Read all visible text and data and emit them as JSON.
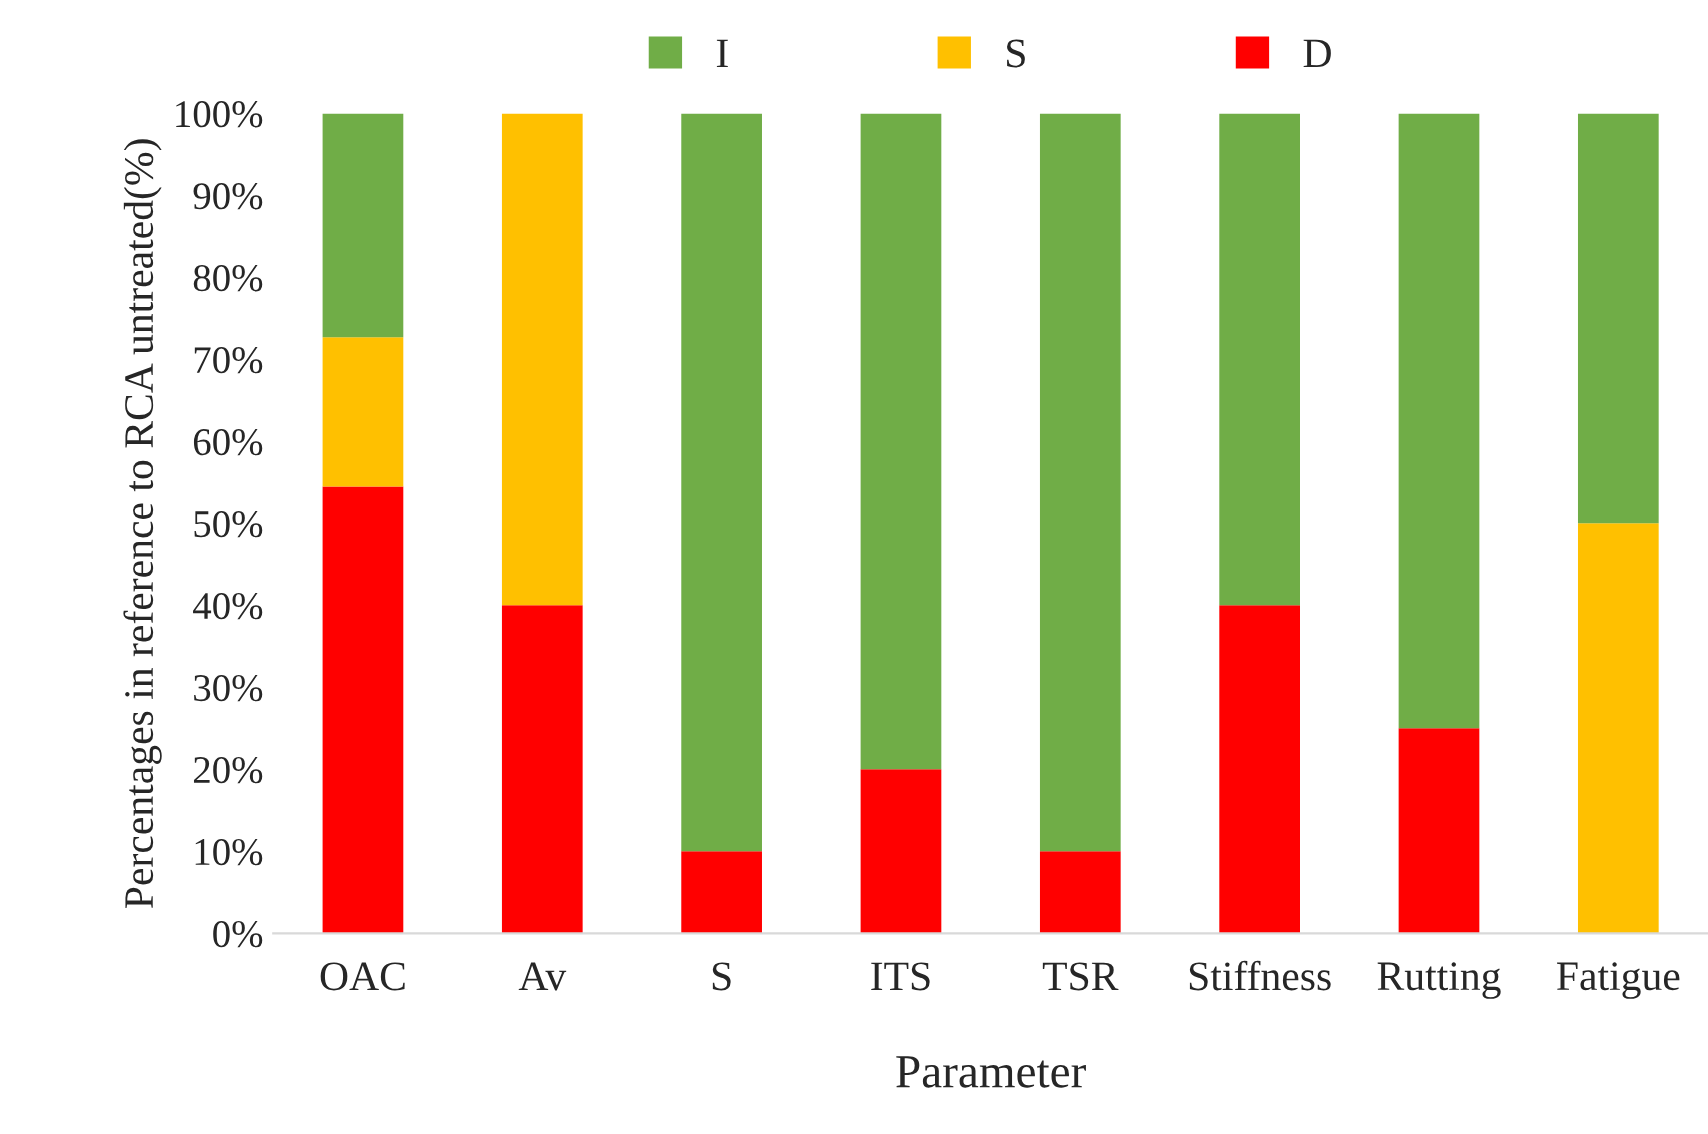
{
  "chart_data": {
    "type": "bar",
    "stacked": true,
    "xlabel": "Parameter",
    "ylabel": "Percentages in reference to RCA untreated(%)",
    "categories": [
      "OAC",
      "Av",
      "S",
      "ITS",
      "TSR",
      "Stiffness",
      "Rutting",
      "Fatigue"
    ],
    "series": [
      {
        "name": "D",
        "color": "#ff0000",
        "values": [
          54.5,
          40,
          10,
          20,
          10,
          40,
          25,
          0
        ]
      },
      {
        "name": "S",
        "color": "#ffc000",
        "values": [
          18.2,
          60,
          0,
          0,
          0,
          0,
          0,
          50
        ]
      },
      {
        "name": "I",
        "color": "#70ad47",
        "values": [
          27.3,
          0,
          90,
          80,
          90,
          60,
          75,
          50
        ]
      }
    ],
    "ylim": [
      0,
      100
    ],
    "yticks": [
      {
        "value": 0,
        "label": "0%"
      },
      {
        "value": 10,
        "label": "10%"
      },
      {
        "value": 20,
        "label": "20%"
      },
      {
        "value": 30,
        "label": "30%"
      },
      {
        "value": 40,
        "label": "40%"
      },
      {
        "value": 50,
        "label": "50%"
      },
      {
        "value": 60,
        "label": "60%"
      },
      {
        "value": 70,
        "label": "70%"
      },
      {
        "value": 80,
        "label": "80%"
      },
      {
        "value": 90,
        "label": "90%"
      },
      {
        "value": 100,
        "label": "100%"
      }
    ],
    "grid": false,
    "legend": "top"
  }
}
